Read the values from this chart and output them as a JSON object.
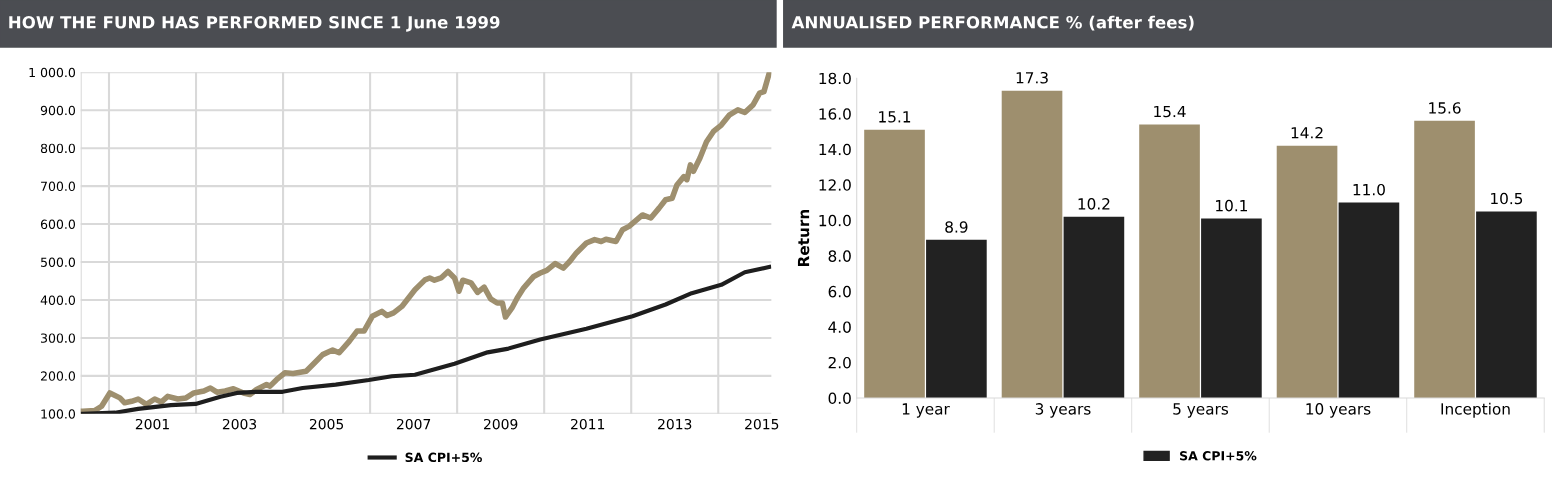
{
  "chart_data": [
    {
      "type": "line",
      "title": "HOW THE FUND HAS PERFORMED SINCE 1 June 1999",
      "xlim": [
        1999.35,
        2015.22
      ],
      "xticks": [
        {
          "value": 2000,
          "label": null
        },
        2001,
        {
          "value": 2002,
          "label": null
        },
        2003,
        {
          "value": 2004,
          "label": null
        },
        2005,
        {
          "value": 2006,
          "label": null
        },
        2007,
        {
          "value": 2008,
          "label": null
        },
        2009,
        {
          "value": 2010,
          "label": null
        },
        2011,
        {
          "value": 2012,
          "label": null
        },
        2013,
        {
          "value": 2014,
          "label": null
        },
        2015
      ],
      "ylim": [
        100,
        1000
      ],
      "yticks": [
        {
          "value": 100,
          "label": "100.0"
        },
        {
          "value": 200,
          "label": "200.0"
        },
        {
          "value": 300,
          "label": "300.0"
        },
        {
          "value": 400,
          "label": "400.0"
        },
        {
          "value": 500,
          "label": "500.0"
        },
        {
          "value": 600,
          "label": "600.0"
        },
        {
          "value": 700,
          "label": "700.0"
        },
        {
          "value": 800,
          "label": "800.0"
        },
        {
          "value": 900,
          "label": "900.0"
        },
        {
          "value": 1000,
          "label": "1 000.0"
        }
      ],
      "grid": true,
      "legend": "bottom",
      "marker": "none",
      "line_style": "solid",
      "series": [
        {
          "color": "#9e8f6e",
          "x": [
            1999.4,
            1999.68,
            1999.83,
            2000.02,
            2000.25,
            2000.36,
            2000.52,
            2000.67,
            2000.86,
            2001.05,
            2001.2,
            2001.35,
            2001.58,
            2001.77,
            2001.95,
            2002.18,
            2002.33,
            2002.48,
            2002.67,
            2002.86,
            2003.09,
            2003.24,
            2003.39,
            2003.62,
            2003.7,
            2003.85,
            2004.04,
            2004.23,
            2004.53,
            2004.72,
            2004.91,
            2005.14,
            2005.29,
            2005.52,
            2005.7,
            2005.86,
            2006.05,
            2006.27,
            2006.39,
            2006.54,
            2006.73,
            2007.03,
            2007.26,
            2007.37,
            2007.48,
            2007.63,
            2007.79,
            2007.94,
            2008.04,
            2008.13,
            2008.32,
            2008.47,
            2008.62,
            2008.77,
            2008.92,
            2009.04,
            2009.11,
            2009.26,
            2009.38,
            2009.53,
            2009.76,
            2009.91,
            2010.06,
            2010.25,
            2010.44,
            2010.59,
            2010.74,
            2010.97,
            2011.16,
            2011.31,
            2011.42,
            2011.65,
            2011.8,
            2011.95,
            2012.26,
            2012.45,
            2012.64,
            2012.79,
            2012.94,
            2013.05,
            2013.21,
            2013.28,
            2013.36,
            2013.43,
            2013.58,
            2013.73,
            2013.89,
            2014.07,
            2014.26,
            2014.45,
            2014.61,
            2014.8,
            2014.95,
            2015.05,
            2015.17
          ],
          "values": [
            107,
            109,
            120,
            155,
            142,
            129,
            133,
            139,
            125,
            139,
            131,
            146,
            139,
            142,
            155,
            160,
            168,
            157,
            160,
            166,
            155,
            151,
            164,
            177,
            173,
            190,
            208,
            206,
            212,
            234,
            256,
            268,
            261,
            291,
            318,
            318,
            357,
            370,
            359,
            366,
            383,
            427,
            453,
            458,
            452,
            458,
            475,
            458,
            423,
            452,
            445,
            420,
            434,
            403,
            392,
            392,
            355,
            379,
            405,
            432,
            462,
            471,
            478,
            496,
            484,
            502,
            524,
            550,
            559,
            554,
            560,
            554,
            585,
            594,
            624,
            616,
            642,
            664,
            668,
            703,
            725,
            717,
            756,
            739,
            774,
            817,
            844,
            861,
            888,
            901,
            894,
            914,
            945,
            949,
            997
          ]
        },
        {
          "name": "SA CPI+5%",
          "color": "#1e1e1e",
          "x": [
            1999.4,
            2000.14,
            2000.67,
            2001.42,
            2001.99,
            2002.56,
            2002.94,
            2003.39,
            2003.99,
            2004.45,
            2005.21,
            2005.97,
            2006.5,
            2007.03,
            2007.94,
            2008.7,
            2009.15,
            2009.91,
            2010.97,
            2012.03,
            2012.79,
            2013.39,
            2014.07,
            2014.61,
            2015.17
          ],
          "values": [
            100,
            103,
            113,
            123,
            126,
            145,
            155,
            158,
            158,
            168,
            177,
            189,
            199,
            203,
            232,
            262,
            271,
            296,
            324,
            357,
            388,
            418,
            440,
            473,
            487
          ]
        }
      ]
    },
    {
      "type": "bar",
      "title": "ANNUALISED PERFORMANCE % (after fees)",
      "ylabel": "Return",
      "categories": [
        "1 year",
        "3 years",
        "5 years",
        "10 years",
        "Inception"
      ],
      "ylim": [
        0,
        18
      ],
      "yticks": [
        {
          "value": 0,
          "label": "0.0"
        },
        {
          "value": 2,
          "label": "2.0"
        },
        {
          "value": 4,
          "label": "4.0"
        },
        {
          "value": 6,
          "label": "6.0"
        },
        {
          "value": 8,
          "label": "8.0"
        },
        {
          "value": 10,
          "label": "10.0"
        },
        {
          "value": 12,
          "label": "12.0"
        },
        {
          "value": 14,
          "label": "14.0"
        },
        {
          "value": 16,
          "label": "16.0"
        },
        {
          "value": 18,
          "label": "18.0"
        }
      ],
      "grid": false,
      "legend": "bottom",
      "series": [
        {
          "color": "#9e8f6e",
          "values": [
            15.1,
            17.3,
            15.4,
            14.2,
            15.6
          ],
          "value_labels": [
            "15.1",
            "17.3",
            "15.4",
            "14.2",
            "15.6"
          ]
        },
        {
          "name": "SA CPI+5%",
          "color": "#222222",
          "values": [
            8.9,
            10.2,
            10.1,
            11.0,
            10.5
          ],
          "value_labels": [
            "8.9",
            "10.2",
            "10.1",
            "11.0",
            "10.5"
          ]
        }
      ]
    }
  ]
}
